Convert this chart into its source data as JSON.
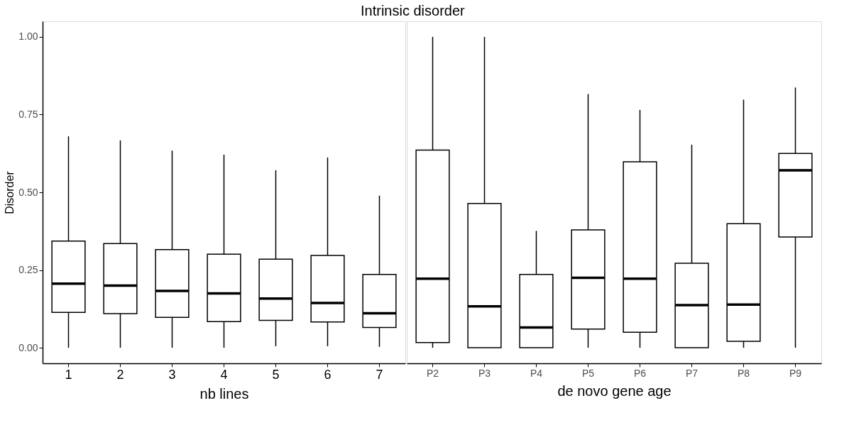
{
  "chart_data": [
    {
      "type": "box",
      "title": "Intrinsic disorder",
      "xlabel": "nb lines",
      "ylabel": "Disorder",
      "grid": false,
      "categories": [
        "1",
        "2",
        "3",
        "4",
        "5",
        "6",
        "7"
      ],
      "ylim": [
        -0.05,
        1.05
      ],
      "yticks": [
        {
          "value": 0,
          "label": "0.00"
        },
        {
          "value": 0.25,
          "label": "0.25"
        },
        {
          "value": 0.5,
          "label": "0.50"
        },
        {
          "value": 0.75,
          "label": "0.75"
        },
        {
          "value": 1,
          "label": "1.00"
        }
      ],
      "boxes": [
        {
          "low": 0,
          "q1": 0.114,
          "median": 0.206,
          "q3": 0.343,
          "high": 0.68
        },
        {
          "low": 0,
          "q1": 0.11,
          "median": 0.2,
          "q3": 0.335,
          "high": 0.667
        },
        {
          "low": 0,
          "q1": 0.098,
          "median": 0.183,
          "q3": 0.316,
          "high": 0.634
        },
        {
          "low": 0,
          "q1": 0.084,
          "median": 0.175,
          "q3": 0.301,
          "high": 0.621
        },
        {
          "low": 0.005,
          "q1": 0.088,
          "median": 0.158,
          "q3": 0.285,
          "high": 0.571
        },
        {
          "low": 0.005,
          "q1": 0.083,
          "median": 0.144,
          "q3": 0.297,
          "high": 0.612
        },
        {
          "low": 0.003,
          "q1": 0.065,
          "median": 0.111,
          "q3": 0.236,
          "high": 0.489
        }
      ]
    },
    {
      "type": "box",
      "xlabel": "de novo gene age",
      "grid": false,
      "tick_labels": "x",
      "categories": [
        "P2",
        "P3",
        "P4",
        "P5",
        "P6",
        "P7",
        "P8",
        "P9"
      ],
      "ylim": [
        -0.05,
        1.05
      ],
      "boxes": [
        {
          "low": 0,
          "q1": 0.017,
          "median": 0.222,
          "q3": 0.636,
          "high": 1.0
        },
        {
          "low": 0,
          "q1": 0,
          "median": 0.133,
          "q3": 0.464,
          "high": 1.0
        },
        {
          "low": 0,
          "q1": 0,
          "median": 0.065,
          "q3": 0.236,
          "high": 0.376
        },
        {
          "low": 0,
          "q1": 0.06,
          "median": 0.225,
          "q3": 0.379,
          "high": 0.816
        },
        {
          "low": 0,
          "q1": 0.05,
          "median": 0.222,
          "q3": 0.598,
          "high": 0.765
        },
        {
          "low": 0,
          "q1": 0,
          "median": 0.137,
          "q3": 0.272,
          "high": 0.653
        },
        {
          "low": 0,
          "q1": 0.021,
          "median": 0.139,
          "q3": 0.399,
          "high": 0.798
        },
        {
          "low": 0,
          "q1": 0.356,
          "median": 0.571,
          "q3": 0.625,
          "high": 0.837
        }
      ]
    }
  ]
}
